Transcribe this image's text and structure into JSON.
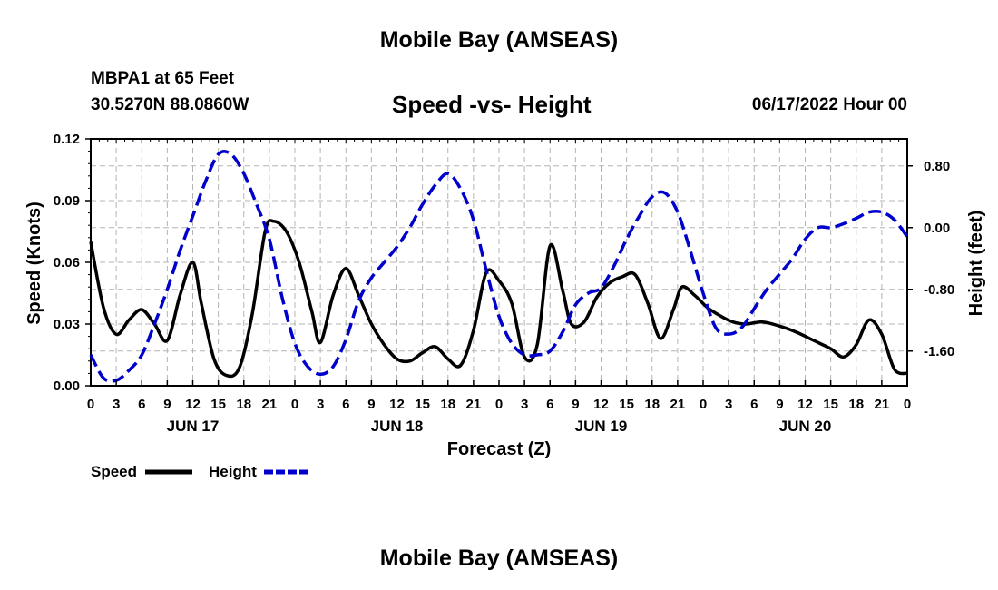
{
  "header": {
    "title": "Mobile Bay (AMSEAS)",
    "station": "MBPA1 at 65 Feet",
    "coords": "30.5270N  88.0860W",
    "date": "06/17/2022 Hour 00"
  },
  "footer": {
    "repeat_title": "Mobile Bay (AMSEAS)"
  },
  "colors": {
    "speed": "#000000",
    "height": "#0000cc",
    "grid": "#b4b4b4"
  },
  "chart_data": {
    "type": "line",
    "title": "Speed -vs- Height",
    "xlabel": "Forecast (Z)",
    "ylabel_left": "Speed (Knots)",
    "ylabel_right": "Height (feet)",
    "x_range_hours": [
      0,
      96
    ],
    "y_left_range": [
      0,
      0.12
    ],
    "y_right_range": [
      -2.05,
      1.15
    ],
    "y_left_ticks": [
      "0.00",
      "0.03",
      "0.06",
      "0.09",
      "0.12"
    ],
    "y_right_ticks": [
      "-1.60",
      "-0.80",
      "0.00",
      "0.80"
    ],
    "x_tick_labels": [
      "0",
      "3",
      "6",
      "9",
      "12",
      "15",
      "18",
      "21",
      "0",
      "3",
      "6",
      "9",
      "12",
      "15",
      "18",
      "21",
      "0",
      "3",
      "6",
      "9",
      "12",
      "15",
      "18",
      "21",
      "0",
      "3",
      "6",
      "9",
      "12",
      "15",
      "18",
      "21",
      "0"
    ],
    "day_labels": [
      "JUN 17",
      "JUN 18",
      "JUN 19",
      "JUN 20"
    ],
    "legend": [
      {
        "name": "Speed",
        "style": "solid"
      },
      {
        "name": "Height",
        "style": "dashed"
      }
    ],
    "series": [
      {
        "name": "Speed",
        "axis": "left",
        "x": [
          0,
          1.5,
          3,
          4.5,
          6,
          7.5,
          9,
          10.5,
          12,
          13,
          14.5,
          16,
          17.5,
          19,
          20.5,
          21.5,
          23,
          24.5,
          26,
          27,
          28.5,
          30,
          31.5,
          33,
          34.5,
          36,
          37.5,
          39,
          40.5,
          42,
          43.5,
          45,
          46.5,
          48,
          49.5,
          51,
          52.5,
          54,
          55.5,
          56.5,
          58,
          59.5,
          61,
          62.5,
          64,
          65.5,
          67,
          68.5,
          69.5,
          71,
          72.5,
          74,
          75.5,
          77,
          79,
          81,
          83,
          85,
          87,
          88.5,
          90,
          91.5,
          93,
          94.5,
          96
        ],
        "values": [
          0.07,
          0.038,
          0.025,
          0.032,
          0.037,
          0.03,
          0.022,
          0.044,
          0.06,
          0.04,
          0.013,
          0.005,
          0.009,
          0.035,
          0.075,
          0.08,
          0.075,
          0.06,
          0.036,
          0.021,
          0.044,
          0.057,
          0.044,
          0.03,
          0.02,
          0.013,
          0.012,
          0.016,
          0.019,
          0.013,
          0.01,
          0.027,
          0.055,
          0.051,
          0.04,
          0.014,
          0.02,
          0.068,
          0.046,
          0.03,
          0.031,
          0.043,
          0.05,
          0.053,
          0.054,
          0.04,
          0.023,
          0.037,
          0.048,
          0.044,
          0.038,
          0.034,
          0.031,
          0.03,
          0.031,
          0.029,
          0.026,
          0.022,
          0.018,
          0.014,
          0.02,
          0.032,
          0.025,
          0.008,
          0.006
        ]
      },
      {
        "name": "Height",
        "axis": "right",
        "x": [
          0,
          1.5,
          3,
          4.5,
          6,
          7.5,
          9,
          10.5,
          12,
          13.5,
          15,
          16.5,
          18,
          19.5,
          21,
          22.5,
          24,
          25.5,
          27,
          28.5,
          30,
          31.5,
          33,
          34.5,
          36,
          37.5,
          39,
          40.5,
          42,
          43.5,
          45,
          46.5,
          48,
          49.5,
          51,
          52.5,
          54,
          55.5,
          57,
          58.5,
          60,
          61.5,
          63,
          64.5,
          66,
          67.5,
          69,
          70.5,
          72,
          73.5,
          75,
          76.5,
          78,
          79.5,
          81,
          82.5,
          84,
          85.5,
          87,
          88.5,
          90,
          91.5,
          93,
          94.5,
          96
        ],
        "values": [
          -1.65,
          -1.95,
          -1.98,
          -1.85,
          -1.65,
          -1.25,
          -0.8,
          -0.3,
          0.15,
          0.6,
          0.95,
          0.95,
          0.7,
          0.3,
          -0.15,
          -0.9,
          -1.5,
          -1.8,
          -1.9,
          -1.8,
          -1.45,
          -0.95,
          -0.65,
          -0.45,
          -0.25,
          0.0,
          0.3,
          0.55,
          0.7,
          0.5,
          0.1,
          -0.55,
          -1.15,
          -1.5,
          -1.65,
          -1.65,
          -1.6,
          -1.35,
          -1.0,
          -0.85,
          -0.78,
          -0.5,
          -0.15,
          0.15,
          0.4,
          0.45,
          0.2,
          -0.3,
          -0.85,
          -1.3,
          -1.38,
          -1.3,
          -1.05,
          -0.8,
          -0.6,
          -0.4,
          -0.15,
          0.0,
          0.0,
          0.05,
          0.12,
          0.2,
          0.2,
          0.1,
          -0.12
        ]
      }
    ]
  }
}
